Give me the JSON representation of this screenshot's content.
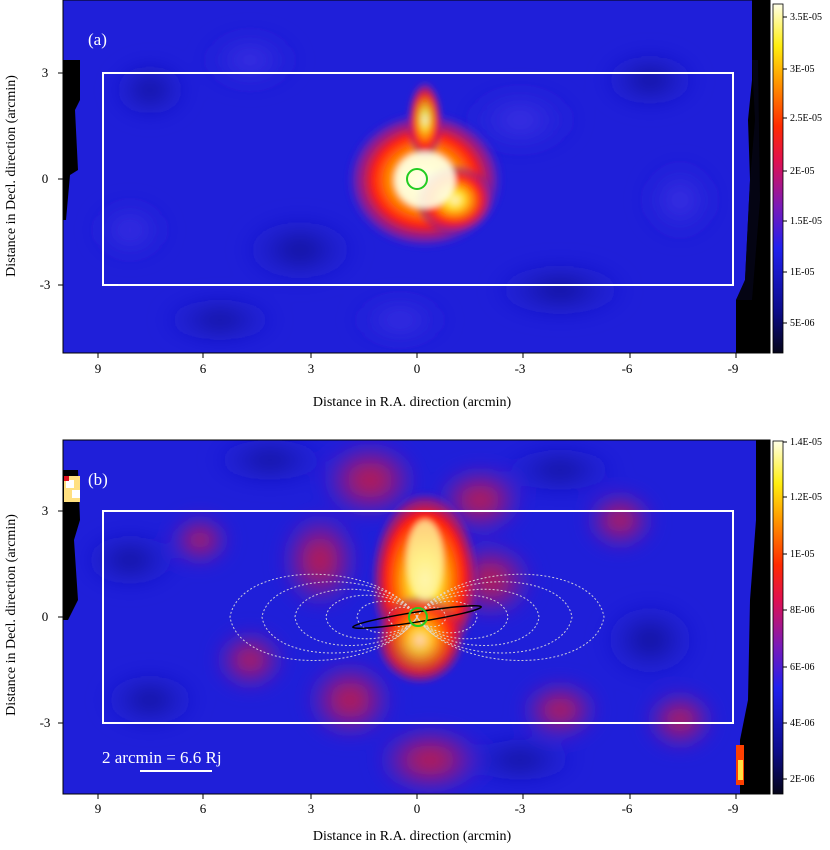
{
  "figure": {
    "panels": [
      {
        "id": "a",
        "label": "(a)",
        "xlabel": "Distance in R.A. direction (arcmin)",
        "ylabel": "Distance in Decl. direction (arcmin)",
        "xticks": [
          "9",
          "6",
          "3",
          "0",
          "-3",
          "-6",
          "-9"
        ],
        "yticks": [
          "3",
          "0",
          "-3"
        ],
        "colorbar_ticks": [
          "3.5E-05",
          "3E-05",
          "2.5E-05",
          "2E-05",
          "1.5E-05",
          "1E-05",
          "5E-06"
        ]
      },
      {
        "id": "b",
        "label": "(b)",
        "xlabel": "Distance in R.A. direction (arcmin)",
        "ylabel": "Distance in Decl. direction (arcmin)",
        "xticks": [
          "9",
          "6",
          "3",
          "0",
          "-3",
          "-6",
          "-9"
        ],
        "yticks": [
          "3",
          "0",
          "-3"
        ],
        "colorbar_ticks": [
          "1.4E-05",
          "1.2E-05",
          "1E-05",
          "8E-06",
          "6E-06",
          "4E-06",
          "2E-06"
        ],
        "scale_bar_label": "2 arcmin = 6.6 Rj"
      }
    ]
  },
  "chart_data": [
    {
      "type": "heatmap",
      "title": "(a)",
      "xlabel": "Distance in R.A. direction (arcmin)",
      "ylabel": "Distance in Decl. direction (arcmin)",
      "xlim": [
        10,
        -10
      ],
      "ylim": [
        -4.9,
        4.9
      ],
      "colorbar_range": [
        1.5e-06,
        3.65e-05
      ],
      "region_box": {
        "x": [
          9,
          -9
        ],
        "y": [
          -3,
          3
        ]
      },
      "source_circle_center": [
        0,
        0
      ],
      "peak_position": [
        -0.2,
        0
      ],
      "colors": {
        "background": "#1f1fd9",
        "peak": "#ffffe6",
        "box": "#ffffff",
        "circle": "#22cc22"
      }
    },
    {
      "type": "heatmap",
      "title": "(b)",
      "xlabel": "Distance in R.A. direction (arcmin)",
      "ylabel": "Distance in Decl. direction (arcmin)",
      "xlim": [
        10,
        -10
      ],
      "ylim": [
        -4.9,
        4.9
      ],
      "colorbar_range": [
        1.5e-06,
        1.4e-05
      ],
      "region_box": {
        "x": [
          9,
          -9
        ],
        "y": [
          -3,
          3
        ]
      },
      "source_circle_center": [
        0,
        0
      ],
      "scale_bar_arcmin": 2,
      "overlay": "dipole magnetic field lines and Io torus ellipse",
      "colors": {
        "background": "#1f1fd9",
        "peak": "#ffffe6",
        "box": "#ffffff",
        "circle": "#22cc22"
      }
    }
  ]
}
